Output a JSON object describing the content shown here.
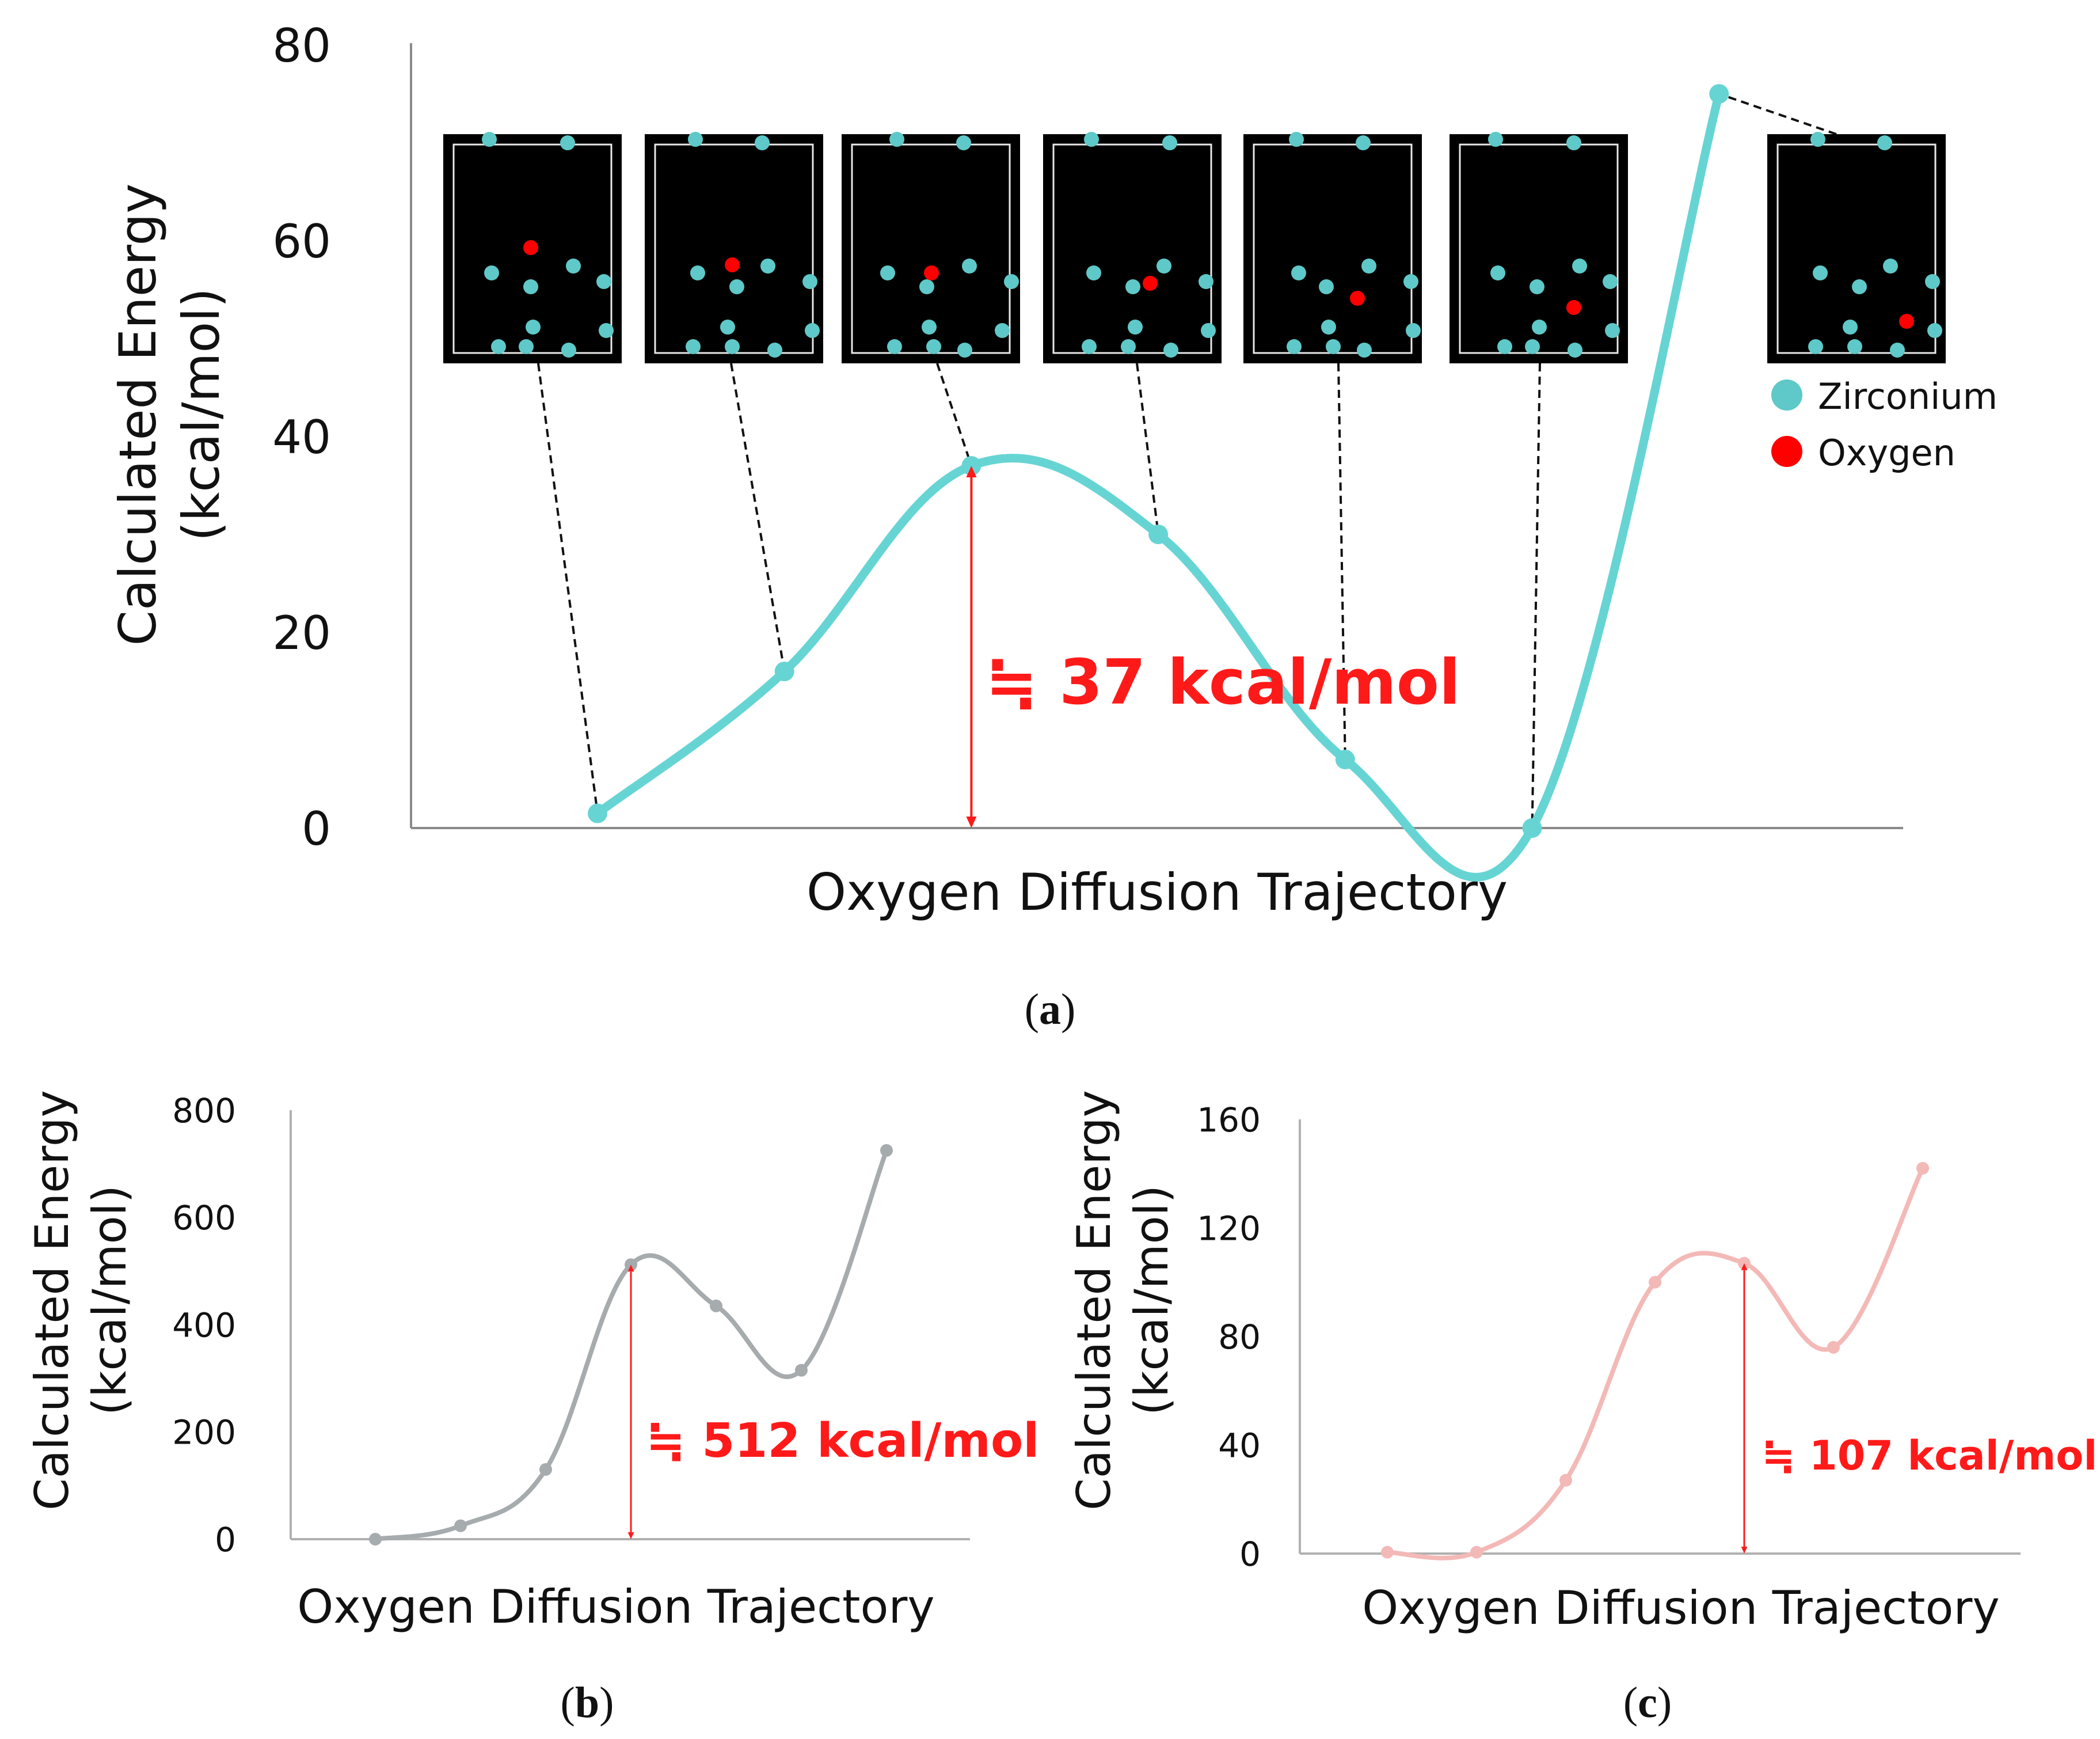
{
  "chart_data": [
    {
      "panel": "a",
      "type": "line",
      "xlabel": "Oxygen Diffusion Trajectory",
      "ylabel_lines": [
        "Calculated Energy",
        "(kcal/mol)"
      ],
      "ylim": [
        0,
        80
      ],
      "yticks": [
        0,
        20,
        40,
        60,
        80
      ],
      "tick_labels": [
        "0",
        "20",
        "40",
        "60",
        "80"
      ],
      "x": [
        1,
        2,
        3,
        4,
        5,
        6,
        7
      ],
      "values": [
        1.5,
        16,
        37,
        30,
        7,
        0,
        75
      ],
      "color": "#67d4d4",
      "barrier_label": "≒ 37 kcal/mol",
      "barrier_value": 37,
      "barrier_color": "#ff1a1a",
      "legend": [
        {
          "label": "Zirconium",
          "color": "#5fc8c8"
        },
        {
          "label": "Oxygen",
          "color": "#ff0000"
        }
      ],
      "legend_position": "right",
      "grid": false
    },
    {
      "panel": "b",
      "type": "line",
      "xlabel": "Oxygen Diffusion Trajectory",
      "ylabel_lines": [
        "Calculated Energy",
        "(kcal/mol)"
      ],
      "ylim": [
        0,
        800
      ],
      "yticks": [
        0,
        200,
        400,
        600,
        800
      ],
      "tick_labels": [
        "0",
        "200",
        "400",
        "600",
        "800"
      ],
      "x": [
        1,
        2,
        3,
        4,
        5,
        6,
        7
      ],
      "values": [
        0,
        25,
        130,
        512,
        435,
        315,
        725
      ],
      "color": "#a6abae",
      "barrier_label": "≒ 512 kcal/mol",
      "barrier_value": 512,
      "barrier_color": "#ff1a1a",
      "grid": false
    },
    {
      "panel": "c",
      "type": "line",
      "xlabel": "Oxygen Diffusion Trajectory",
      "ylabel_lines": [
        "Calculated Energy",
        "(kcal/mol)"
      ],
      "ylim": [
        0,
        160
      ],
      "yticks": [
        0,
        40,
        80,
        120,
        160
      ],
      "tick_labels": [
        "0",
        "40",
        "80",
        "120",
        "160"
      ],
      "x": [
        1,
        2,
        3,
        4,
        5,
        6,
        7
      ],
      "values": [
        0.5,
        0.5,
        27,
        100,
        107,
        76,
        142
      ],
      "color": "#f3b9b7",
      "barrier_label": "≒ 107 kcal/mol",
      "barrier_value": 107,
      "barrier_color": "#ff1a1a",
      "grid": false
    }
  ],
  "panel_labels": {
    "a": "a",
    "b": "b",
    "c": "c"
  },
  "structure_colors": {
    "zirconium": "#5fc8c8",
    "oxygen": "#ff0000",
    "background": "#000000",
    "cell": "#e8e8e8"
  }
}
